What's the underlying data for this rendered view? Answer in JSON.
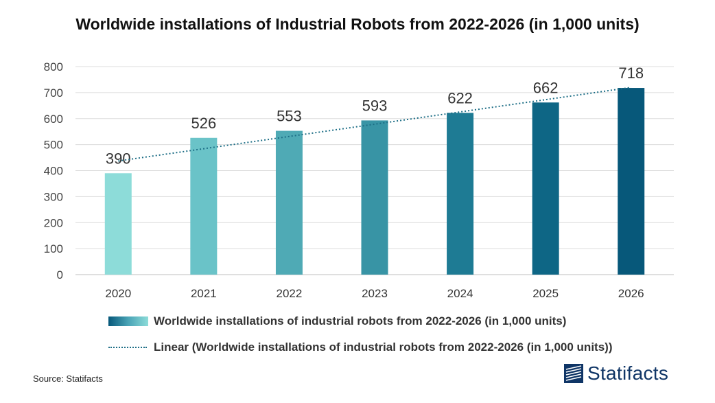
{
  "chart_data": {
    "type": "bar",
    "title": "Worldwide installations of Industrial Robots from 2022-2026 (in 1,000 units)",
    "categories": [
      "2020",
      "2021",
      "2022",
      "2023",
      "2024",
      "2025",
      "2026"
    ],
    "values": [
      390,
      526,
      553,
      593,
      622,
      662,
      718
    ],
    "value_labels": [
      "390",
      "526",
      "553",
      "593",
      "622",
      "662",
      "718"
    ],
    "y_ticks": [
      "0",
      "100",
      "200",
      "300",
      "400",
      "500",
      "600",
      "700",
      "800"
    ],
    "ylim": [
      0,
      800
    ],
    "xlabel": "",
    "ylabel": "",
    "grid": true,
    "trendline": {
      "type": "linear",
      "start": 437,
      "end": 720
    },
    "bar_colors": [
      "#8ddcd9",
      "#6ac3c8",
      "#4faab5",
      "#3894a5",
      "#1e7b94",
      "#0e6685",
      "#07587a"
    ],
    "trend_color": "#1d6e86",
    "legend": [
      "Worldwide installations of industrial robots from 2022-2026 (in 1,000 units)",
      "Linear (Worldwide installations of industrial robots from 2022-2026 (in 1,000 units))"
    ],
    "legend_position": "bottom"
  },
  "source": "Source: Statifacts",
  "brand": "Statifacts"
}
